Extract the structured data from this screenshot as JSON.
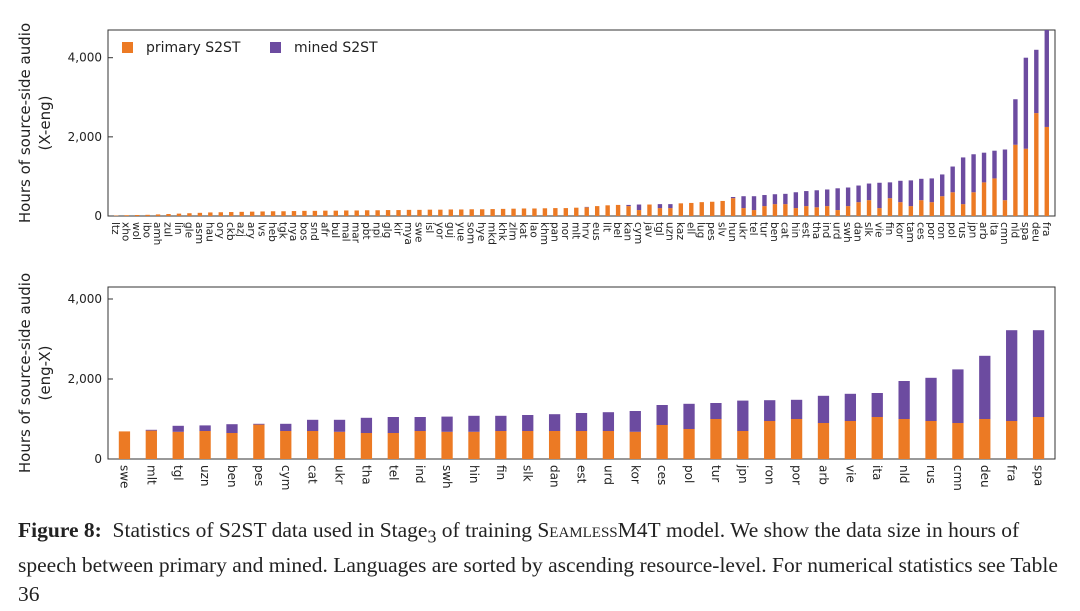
{
  "chart_data": [
    {
      "type": "stacked_bar",
      "y_label": "Hours of source-side audio",
      "y_label_sub": "(X-eng)",
      "legend": "upper left",
      "ylim": [
        0,
        4700
      ],
      "yticks": [
        0,
        {
          "value": 2000,
          "label": "2,000"
        },
        {
          "value": 4000,
          "label": "4,000"
        }
      ],
      "categories": [
        "ltz",
        "xho",
        "wol",
        "ibo",
        "amh",
        "zul",
        "lin",
        "gle",
        "asm",
        "hau",
        "ory",
        "ckb",
        "azj",
        "ary",
        "lvs",
        "heb",
        "tgk",
        "nya",
        "bos",
        "snd",
        "afr",
        "bul",
        "mal",
        "mar",
        "pbt",
        "npi",
        "glg",
        "kir",
        "mya",
        "swe",
        "isl",
        "yor",
        "guj",
        "yue",
        "som",
        "hye",
        "mkd",
        "khk",
        "zlm",
        "kat",
        "lao",
        "khm",
        "pan",
        "nor",
        "mlt",
        "hrv",
        "eus",
        "lit",
        "bel",
        "kan",
        "cym",
        "jav",
        "tgl",
        "uzn",
        "kaz",
        "ell",
        "lug",
        "pes",
        "slv",
        "hun",
        "ukr",
        "tel",
        "tur",
        "ben",
        "cat",
        "hin",
        "est",
        "tha",
        "ind",
        "urd",
        "swh",
        "dan",
        "slk",
        "vie",
        "fin",
        "kor",
        "tam",
        "ces",
        "por",
        "ron",
        "pol",
        "rus",
        "jpn",
        "arb",
        "ita",
        "cmn",
        "nld",
        "spa",
        "deu",
        "fra"
      ],
      "series": [
        {
          "name": "primary S2ST",
          "color": "#ec7a24",
          "values": [
            10,
            20,
            25,
            30,
            40,
            50,
            60,
            70,
            80,
            90,
            95,
            100,
            105,
            110,
            115,
            120,
            120,
            125,
            130,
            130,
            135,
            135,
            140,
            140,
            145,
            145,
            150,
            150,
            155,
            155,
            160,
            160,
            165,
            165,
            170,
            170,
            175,
            180,
            185,
            190,
            190,
            195,
            200,
            200,
            210,
            220,
            250,
            270,
            280,
            250,
            150,
            290,
            200,
            200,
            320,
            330,
            350,
            360,
            380,
            450,
            200,
            150,
            250,
            300,
            300,
            200,
            250,
            220,
            250,
            150,
            250,
            350,
            400,
            200,
            450,
            350,
            250,
            400,
            350,
            500,
            600,
            300,
            600,
            850,
            950,
            400,
            1800,
            1700,
            2600,
            2250
          ]
        },
        {
          "name": "mined S2ST",
          "color": "#6c4ba0",
          "values": [
            0,
            0,
            0,
            0,
            0,
            0,
            0,
            0,
            0,
            0,
            0,
            0,
            0,
            0,
            0,
            0,
            0,
            0,
            0,
            0,
            0,
            0,
            0,
            0,
            0,
            0,
            0,
            0,
            0,
            0,
            0,
            0,
            0,
            0,
            0,
            0,
            0,
            0,
            0,
            0,
            0,
            0,
            0,
            0,
            0,
            10,
            0,
            0,
            0,
            30,
            140,
            0,
            100,
            100,
            0,
            0,
            0,
            0,
            0,
            30,
            300,
            350,
            280,
            250,
            260,
            400,
            380,
            430,
            420,
            550,
            470,
            420,
            420,
            640,
            400,
            540,
            650,
            540,
            600,
            550,
            650,
            1180,
            960,
            750,
            700,
            1280,
            1150,
            2300,
            1600,
            2450
          ]
        }
      ]
    },
    {
      "type": "stacked_bar",
      "y_label": "Hours of source-side audio",
      "y_label_sub": "(eng-X)",
      "legend": false,
      "ylim": [
        0,
        4300
      ],
      "yticks": [
        0,
        {
          "value": 2000,
          "label": "2,000"
        },
        {
          "value": 4000,
          "label": "4,000"
        }
      ],
      "categories": [
        "swe",
        "mlt",
        "tgl",
        "uzn",
        "ben",
        "pes",
        "cym",
        "cat",
        "ukr",
        "tha",
        "tel",
        "ind",
        "swh",
        "hin",
        "fin",
        "slk",
        "dan",
        "est",
        "urd",
        "kor",
        "ces",
        "pol",
        "tur",
        "jpn",
        "ron",
        "por",
        "arb",
        "vie",
        "ita",
        "nld",
        "rus",
        "cmn",
        "deu",
        "fra",
        "spa"
      ],
      "series": [
        {
          "name": "primary S2ST",
          "color": "#ec7a24",
          "values": [
            690,
            710,
            680,
            700,
            650,
            860,
            700,
            700,
            680,
            650,
            650,
            700,
            680,
            680,
            700,
            700,
            700,
            700,
            700,
            680,
            850,
            750,
            1000,
            700,
            950,
            1000,
            900,
            950,
            1050,
            1000,
            950,
            900,
            1000,
            950,
            1050
          ]
        },
        {
          "name": "mined S2ST",
          "color": "#6c4ba0",
          "values": [
            0,
            20,
            150,
            140,
            220,
            20,
            180,
            280,
            300,
            380,
            400,
            350,
            380,
            400,
            380,
            400,
            420,
            450,
            470,
            520,
            500,
            630,
            400,
            760,
            520,
            480,
            680,
            680,
            600,
            950,
            1080,
            1340,
            1580,
            2270,
            2170
          ]
        }
      ]
    }
  ],
  "caption": {
    "label": "Figure 8:",
    "text1": "Statistics of S2ST data used in Stage",
    "sub": "3",
    "text2": "of training",
    "model": "SeamlessM4T",
    "text3": "model. We show the data size in hours of speech between primary and mined. Languages are sorted by ascending resource-level. For numerical statistics see Table 36"
  }
}
